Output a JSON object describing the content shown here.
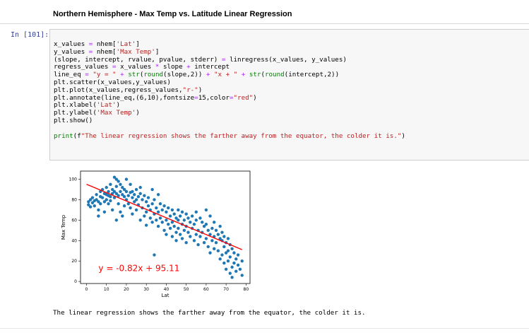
{
  "heading": "Northern Hemisphere - Max Temp vs. Latitude Linear Regression",
  "prompt": "In [101]:",
  "code": {
    "lines": [
      "x_values = nhem['Lat']",
      "y_values = nhem['Max Temp']",
      "(slope, intercept, rvalue, pvalue, stderr) = linregress(x_values, y_values)",
      "regress_values = x_values * slope + intercept",
      "line_eq = \"y = \" + str(round(slope,2)) + \"x + \" + str(round(intercept,2))",
      "plt.scatter(x_values,y_values)",
      "plt.plot(x_values,regress_values,\"r-\")",
      "plt.annotate(line_eq,(6,10),fontsize=15,color=\"red\")",
      "plt.xlabel('Lat')",
      "plt.ylabel('Max Temp')",
      "plt.show()",
      "",
      "print(f\"The linear regression shows the farther away from the equator, the colder it is.\")"
    ]
  },
  "output_text": "The linear regression shows the farther away from the equator, the colder it is.",
  "chart_data": {
    "type": "scatter",
    "xlabel": "Lat",
    "ylabel": "Max Temp",
    "xlim": [
      -3,
      82
    ],
    "ylim": [
      -2,
      108
    ],
    "xticks": [
      "0",
      "10",
      "20",
      "30",
      "40",
      "50",
      "60",
      "70",
      "80"
    ],
    "yticks": [
      "0",
      "20",
      "40",
      "60",
      "80",
      "100"
    ],
    "regression": {
      "slope": -0.82,
      "intercept": 95.11,
      "x_range": [
        0,
        78
      ],
      "color": "#ff0000"
    },
    "annotation": {
      "text": "y = -0.82x + 95.11",
      "x": 6,
      "y": 10,
      "color": "#ff0000"
    },
    "point_color": "#1f77b4",
    "points": [
      [
        1,
        78
      ],
      [
        1,
        75
      ],
      [
        2,
        80
      ],
      [
        2,
        73
      ],
      [
        3,
        82
      ],
      [
        3,
        77
      ],
      [
        4,
        79
      ],
      [
        4,
        74
      ],
      [
        5,
        85
      ],
      [
        5,
        80
      ],
      [
        6,
        78
      ],
      [
        6,
        70
      ],
      [
        6,
        64
      ],
      [
        7,
        83
      ],
      [
        7,
        88
      ],
      [
        7,
        76
      ],
      [
        8,
        90
      ],
      [
        8,
        82
      ],
      [
        9,
        86
      ],
      [
        9,
        78
      ],
      [
        9,
        68
      ],
      [
        10,
        85
      ],
      [
        10,
        92
      ],
      [
        10,
        80
      ],
      [
        11,
        84
      ],
      [
        11,
        88
      ],
      [
        11,
        76
      ],
      [
        12,
        83
      ],
      [
        12,
        95
      ],
      [
        12,
        79
      ],
      [
        13,
        90
      ],
      [
        13,
        86
      ],
      [
        13,
        70
      ],
      [
        14,
        102
      ],
      [
        14,
        88
      ],
      [
        14,
        82
      ],
      [
        15,
        100
      ],
      [
        15,
        93
      ],
      [
        15,
        86
      ],
      [
        15,
        60
      ],
      [
        16,
        98
      ],
      [
        16,
        84
      ],
      [
        16,
        76
      ],
      [
        17,
        88
      ],
      [
        17,
        95
      ],
      [
        17,
        68
      ],
      [
        18,
        85
      ],
      [
        18,
        92
      ],
      [
        18,
        64
      ],
      [
        19,
        83
      ],
      [
        19,
        90
      ],
      [
        19,
        74
      ],
      [
        20,
        100
      ],
      [
        20,
        88
      ],
      [
        20,
        80
      ],
      [
        21,
        84
      ],
      [
        21,
        76
      ],
      [
        22,
        87
      ],
      [
        22,
        95
      ],
      [
        22,
        72
      ],
      [
        23,
        82
      ],
      [
        23,
        88
      ],
      [
        23,
        66
      ],
      [
        24,
        85
      ],
      [
        24,
        78
      ],
      [
        25,
        90
      ],
      [
        25,
        80
      ],
      [
        25,
        70
      ],
      [
        26,
        83
      ],
      [
        26,
        75
      ],
      [
        27,
        92
      ],
      [
        27,
        86
      ],
      [
        27,
        60
      ],
      [
        28,
        80
      ],
      [
        28,
        72
      ],
      [
        29,
        84
      ],
      [
        29,
        64
      ],
      [
        30,
        78
      ],
      [
        30,
        68
      ],
      [
        30,
        55
      ],
      [
        31,
        82
      ],
      [
        31,
        74
      ],
      [
        32,
        70
      ],
      [
        32,
        62
      ],
      [
        33,
        90
      ],
      [
        33,
        76
      ],
      [
        33,
        58
      ],
      [
        34,
        80
      ],
      [
        34,
        66
      ],
      [
        34,
        26
      ],
      [
        35,
        72
      ],
      [
        35,
        60
      ],
      [
        36,
        85
      ],
      [
        36,
        68
      ],
      [
        36,
        54
      ],
      [
        37,
        76
      ],
      [
        37,
        62
      ],
      [
        38,
        70
      ],
      [
        38,
        58
      ],
      [
        39,
        74
      ],
      [
        39,
        50
      ],
      [
        40,
        68
      ],
      [
        40,
        60
      ],
      [
        40,
        46
      ],
      [
        41,
        72
      ],
      [
        41,
        56
      ],
      [
        42,
        64
      ],
      [
        42,
        52
      ],
      [
        43,
        70
      ],
      [
        43,
        58
      ],
      [
        43,
        44
      ],
      [
        44,
        66
      ],
      [
        44,
        54
      ],
      [
        45,
        62
      ],
      [
        45,
        48
      ],
      [
        45,
        40
      ],
      [
        46,
        70
      ],
      [
        46,
        60
      ],
      [
        46,
        52
      ],
      [
        47,
        64
      ],
      [
        47,
        46
      ],
      [
        48,
        68
      ],
      [
        48,
        56
      ],
      [
        48,
        42
      ],
      [
        49,
        60
      ],
      [
        49,
        50
      ],
      [
        50,
        66
      ],
      [
        50,
        54
      ],
      [
        50,
        38
      ],
      [
        51,
        62
      ],
      [
        51,
        48
      ],
      [
        52,
        58
      ],
      [
        52,
        44
      ],
      [
        53,
        64
      ],
      [
        53,
        52
      ],
      [
        54,
        56
      ],
      [
        54,
        40
      ],
      [
        55,
        68
      ],
      [
        55,
        60
      ],
      [
        55,
        46
      ],
      [
        56,
        50
      ],
      [
        56,
        36
      ],
      [
        57,
        62
      ],
      [
        57,
        44
      ],
      [
        58,
        58
      ],
      [
        58,
        48
      ],
      [
        59,
        54
      ],
      [
        59,
        38
      ],
      [
        60,
        70
      ],
      [
        60,
        56
      ],
      [
        60,
        42
      ],
      [
        61,
        50
      ],
      [
        61,
        34
      ],
      [
        62,
        64
      ],
      [
        62,
        46
      ],
      [
        62,
        28
      ],
      [
        63,
        52
      ],
      [
        63,
        40
      ],
      [
        64,
        58
      ],
      [
        64,
        44
      ],
      [
        64,
        32
      ],
      [
        65,
        50
      ],
      [
        65,
        38
      ],
      [
        66,
        46
      ],
      [
        66,
        30
      ],
      [
        67,
        54
      ],
      [
        67,
        42
      ],
      [
        67,
        22
      ],
      [
        68,
        40
      ],
      [
        68,
        48
      ],
      [
        68,
        26
      ],
      [
        69,
        44
      ],
      [
        69,
        34
      ],
      [
        69,
        18
      ],
      [
        70,
        38
      ],
      [
        70,
        28
      ],
      [
        70,
        12
      ],
      [
        71,
        42
      ],
      [
        71,
        30
      ],
      [
        71,
        20
      ],
      [
        72,
        36
      ],
      [
        72,
        24
      ],
      [
        72,
        8
      ],
      [
        73,
        32
      ],
      [
        73,
        14
      ],
      [
        73,
        4
      ],
      [
        74,
        28
      ],
      [
        74,
        18
      ],
      [
        75,
        22
      ],
      [
        75,
        10
      ],
      [
        76,
        16
      ],
      [
        76,
        26
      ],
      [
        77,
        12
      ],
      [
        78,
        6
      ],
      [
        78,
        20
      ]
    ]
  }
}
